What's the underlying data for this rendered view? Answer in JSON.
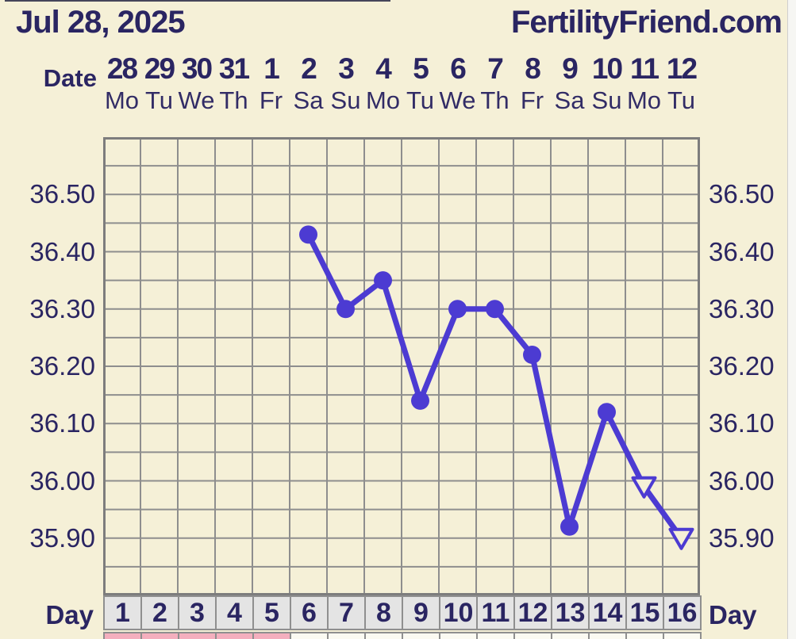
{
  "header": {
    "date": "Jul 28, 2025",
    "brand": "FertilityFriend.com"
  },
  "labels": {
    "date_row": "Date",
    "day_row_left": "Day",
    "day_row_right": "Day"
  },
  "y_axis": {
    "tick_labels": [
      "36.50",
      "36.40",
      "36.30",
      "36.20",
      "36.10",
      "36.00",
      "35.90"
    ]
  },
  "chart_data": {
    "type": "line",
    "title": "Basal body temperature cycle chart",
    "x_dates": [
      "28",
      "29",
      "30",
      "31",
      "1",
      "2",
      "3",
      "4",
      "5",
      "6",
      "7",
      "8",
      "9",
      "10",
      "11",
      "12"
    ],
    "x_weekdays": [
      "Mo",
      "Tu",
      "We",
      "Th",
      "Fr",
      "Sa",
      "Su",
      "Mo",
      "Tu",
      "We",
      "Th",
      "Fr",
      "Sa",
      "Su",
      "Mo",
      "Tu"
    ],
    "cycle_day_numbers": [
      "1",
      "2",
      "3",
      "4",
      "5",
      "6",
      "7",
      "8",
      "9",
      "10",
      "11",
      "12",
      "13",
      "14",
      "15",
      "16"
    ],
    "ylim": [
      35.8,
      36.6
    ],
    "y_gridline_step": 0.05,
    "num_day_columns": 16,
    "grid": true,
    "series": [
      {
        "name": "temperature",
        "points": [
          {
            "day": 6,
            "temp": 36.43,
            "marker": "circle"
          },
          {
            "day": 7,
            "temp": 36.3,
            "marker": "circle"
          },
          {
            "day": 8,
            "temp": 36.35,
            "marker": "circle"
          },
          {
            "day": 9,
            "temp": 36.14,
            "marker": "circle"
          },
          {
            "day": 10,
            "temp": 36.3,
            "marker": "circle"
          },
          {
            "day": 11,
            "temp": 36.3,
            "marker": "circle"
          },
          {
            "day": 12,
            "temp": 36.22,
            "marker": "circle"
          },
          {
            "day": 13,
            "temp": 35.92,
            "marker": "circle"
          },
          {
            "day": 14,
            "temp": 36.12,
            "marker": "circle"
          },
          {
            "day": 15,
            "temp": 35.99,
            "marker": "triangle-open"
          },
          {
            "day": 16,
            "temp": 35.9,
            "marker": "triangle-open"
          }
        ]
      }
    ],
    "menses_days": [
      1,
      2,
      3,
      4,
      5
    ]
  },
  "colors": {
    "background": "#f5f0d7",
    "text_navy": "#2a2562",
    "grid_line": "#8e8e8e",
    "chart_border": "#7d7d7d",
    "temperature_purple": "#4c3bd2",
    "day_cell_gray": "#e4e4e4",
    "menses_pink": "#f4afbe",
    "empty_cell_white": "#fbfaf2"
  }
}
